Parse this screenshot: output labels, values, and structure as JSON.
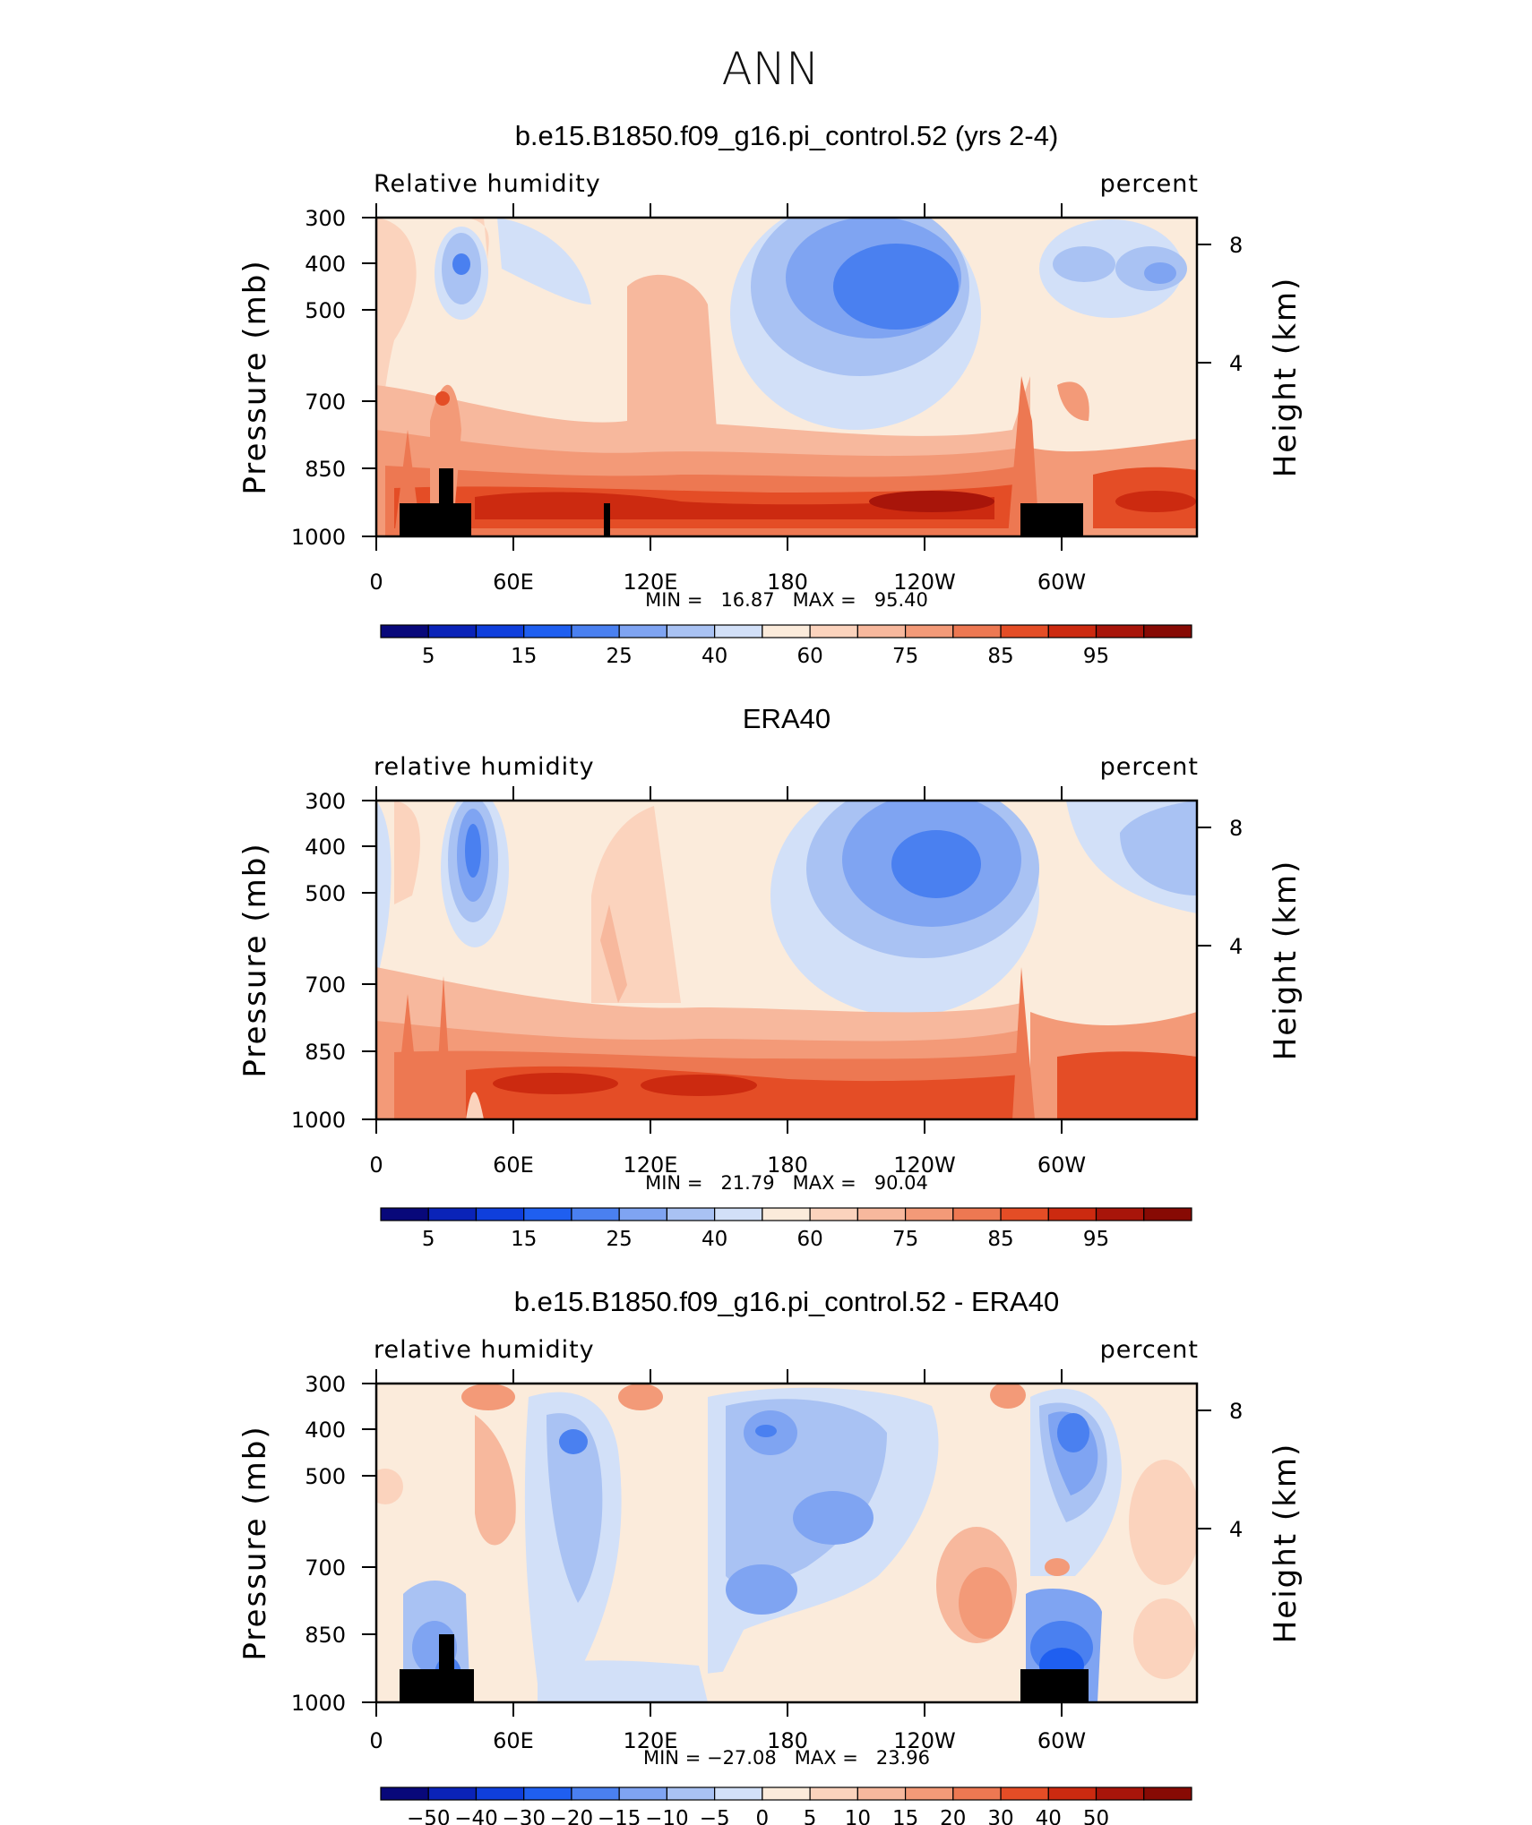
{
  "figure_title": "ANN",
  "colors": {
    "rh_palette": [
      "#08087a",
      "#0a23b8",
      "#0f3fdc",
      "#1f5ff0",
      "#4a80f0",
      "#7fa4f2",
      "#a9c2f3",
      "#d2e0f8",
      "#fbebdb",
      "#fbd3bd",
      "#f7b89d",
      "#f39a78",
      "#ed7852",
      "#e44d26",
      "#cc2a10",
      "#a8150a",
      "#870a04"
    ],
    "land_mask": "#000000"
  },
  "chart_data": [
    {
      "type": "contour",
      "panel_title": "b.e15.B1850.f09_g16.pi_control.52 (yrs 2-4)",
      "left_label": "Relative humidity",
      "right_label": "percent",
      "ylabel": "Pressure (mb)",
      "ylabel_right": "Height (km)",
      "yticks": [
        "300",
        "400",
        "500",
        "700",
        "850",
        "1000"
      ],
      "yticks_right": [
        "8",
        "4"
      ],
      "xticks": [
        "0",
        "60E",
        "120E",
        "180",
        "120W",
        "60W"
      ],
      "minmax": "MIN =   16.87   MAX =   95.40",
      "colorbar_labels": [
        "5",
        "15",
        "25",
        "40",
        "60",
        "75",
        "85",
        "95"
      ],
      "has_topography": true
    },
    {
      "type": "contour",
      "panel_title": "ERA40",
      "left_label": "relative humidity",
      "right_label": "percent",
      "ylabel": "Pressure (mb)",
      "ylabel_right": "Height (km)",
      "yticks": [
        "300",
        "400",
        "500",
        "700",
        "850",
        "1000"
      ],
      "yticks_right": [
        "8",
        "4"
      ],
      "xticks": [
        "0",
        "60E",
        "120E",
        "180",
        "120W",
        "60W"
      ],
      "minmax": "MIN =   21.79   MAX =   90.04",
      "colorbar_labels": [
        "5",
        "15",
        "25",
        "40",
        "60",
        "75",
        "85",
        "95"
      ],
      "has_topography": false
    },
    {
      "type": "contour",
      "panel_title": "b.e15.B1850.f09_g16.pi_control.52 - ERA40",
      "left_label": "relative humidity",
      "right_label": "percent",
      "ylabel": "Pressure (mb)",
      "ylabel_right": "Height (km)",
      "yticks": [
        "300",
        "400",
        "500",
        "700",
        "850",
        "1000"
      ],
      "yticks_right": [
        "8",
        "4"
      ],
      "xticks": [
        "0",
        "60E",
        "120E",
        "180",
        "120W",
        "60W"
      ],
      "minmax": "MIN = −27.08   MAX =   23.96",
      "colorbar_labels": [
        "−50",
        "−40",
        "−30",
        "−20",
        "−15",
        "−10",
        "−5",
        "0",
        "5",
        "10",
        "15",
        "20",
        "30",
        "40",
        "50"
      ],
      "has_topography": true
    }
  ]
}
